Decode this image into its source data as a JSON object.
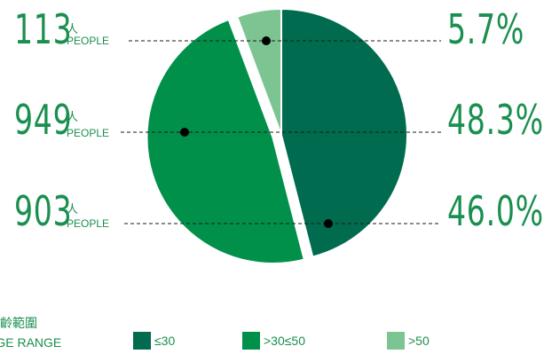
{
  "chart_data": {
    "type": "pie",
    "categories": [
      "≤30",
      ">30≤50",
      ">50"
    ],
    "slices": [
      {
        "label": "≤30",
        "count": "903",
        "percent_text": "46.0%",
        "value": 46.0,
        "color": "#006b4e"
      },
      {
        "label": ">30≤50",
        "count": "949",
        "percent_text": "48.3%",
        "value": 48.3,
        "color": "#00904a"
      },
      {
        "label": ">50",
        "count": "113",
        "percent_text": "5.7%",
        "value": 5.7,
        "color": "#7cc592"
      }
    ],
    "count_unit_cn": "人",
    "count_unit_en": "PEOPLE",
    "legend": {
      "title_cn": "年齡範圍",
      "title_en": "AGE RANGE",
      "placement": "bottom",
      "items": [
        {
          "label": "≤30",
          "color": "#006b4e"
        },
        {
          "label": ">30≤50",
          "color": "#00904a"
        },
        {
          "label": ">50",
          "color": "#7cc592"
        }
      ]
    }
  }
}
